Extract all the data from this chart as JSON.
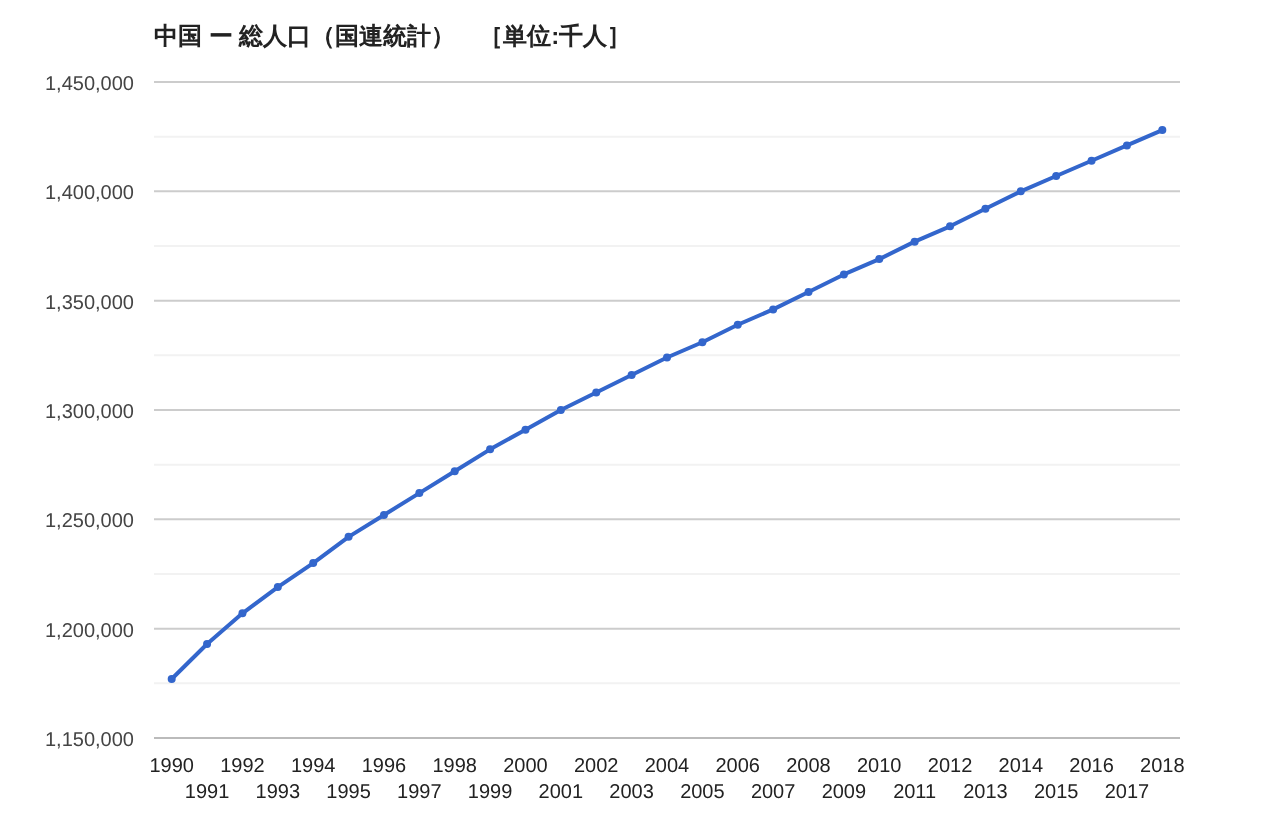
{
  "chart_data": {
    "type": "line",
    "title": "中国 ー 総人口（国連統計）　［単位:千人］",
    "categories": [
      "1990",
      "1991",
      "1992",
      "1993",
      "1994",
      "1995",
      "1996",
      "1997",
      "1998",
      "1999",
      "2000",
      "2001",
      "2002",
      "2003",
      "2004",
      "2005",
      "2006",
      "2007",
      "2008",
      "2009",
      "2010",
      "2011",
      "2012",
      "2013",
      "2014",
      "2015",
      "2016",
      "2017",
      "2018"
    ],
    "series": [
      {
        "color": "#3366cc",
        "values": [
          1177000,
          1193000,
          1207000,
          1219000,
          1230000,
          1242000,
          1252000,
          1262000,
          1272000,
          1282000,
          1291000,
          1300000,
          1308000,
          1316000,
          1324000,
          1331000,
          1339000,
          1346000,
          1354000,
          1362000,
          1369000,
          1377000,
          1384000,
          1392000,
          1400000,
          1407000,
          1414000,
          1421000,
          1428000
        ]
      }
    ],
    "ylim": [
      1150000,
      1450000
    ],
    "yticks": [
      {
        "value": 1150000,
        "label": "1,150,000"
      },
      {
        "value": 1175000,
        "label": null
      },
      {
        "value": 1200000,
        "label": "1,200,000"
      },
      {
        "value": 1225000,
        "label": null
      },
      {
        "value": 1250000,
        "label": "1,250,000"
      },
      {
        "value": 1275000,
        "label": null
      },
      {
        "value": 1300000,
        "label": "1,300,000"
      },
      {
        "value": 1325000,
        "label": null
      },
      {
        "value": 1350000,
        "label": "1,350,000"
      },
      {
        "value": 1375000,
        "label": null
      },
      {
        "value": 1400000,
        "label": "1,400,000"
      },
      {
        "value": 1425000,
        "label": null
      },
      {
        "value": 1450000,
        "label": "1,450,000"
      }
    ],
    "grid": "y",
    "marker": "circle"
  }
}
